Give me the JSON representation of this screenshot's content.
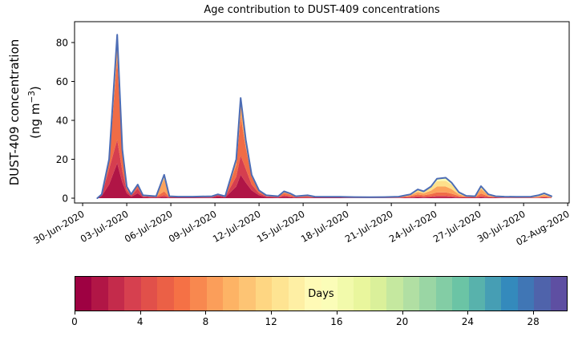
{
  "title": "Age contribution to DUST-409 concentrations",
  "ylabel": {
    "line1": "DUST-409 concentration",
    "line2_pre": "(ng m",
    "line2_sup": "−3",
    "line2_post": ")"
  },
  "colorbar": {
    "label": "Days",
    "min": 0,
    "max": 30,
    "n_segments": 30,
    "ticks": [
      0,
      4,
      8,
      12,
      16,
      20,
      24,
      28
    ],
    "colormap_name": "Spectral",
    "colormap_stops": [
      "#9e0142",
      "#d53e4f",
      "#f46d43",
      "#fdae61",
      "#fee08b",
      "#ffffbf",
      "#e6f598",
      "#abdda4",
      "#66c2a5",
      "#3288bd",
      "#5e4fa2"
    ]
  },
  "chart_data": {
    "type": "area",
    "stacked": true,
    "title": "Age contribution to DUST-409 concentrations",
    "ylabel": "DUST-409 concentration (ng m-3)",
    "x_unit": "days since 30-Jun-2020 00:00",
    "xlim": [
      -0.55,
      33.1
    ],
    "ylim": [
      -2.47,
      90.73
    ],
    "grid": false,
    "total_line_color": "#4d6db5",
    "y_ticks": [
      0,
      20,
      40,
      60,
      80
    ],
    "x_tick_days": [
      0,
      3,
      6,
      9,
      12,
      15,
      18,
      21,
      24,
      27,
      30,
      33
    ],
    "x_tick_labels": [
      "30-Jun-2020",
      "03-Jul-2020",
      "06-Jul-2020",
      "09-Jul-2020",
      "12-Jul-2020",
      "15-Jul-2020",
      "18-Jul-2020",
      "21-Jul-2020",
      "24-Jul-2020",
      "27-Jul-2020",
      "30-Jul-2020",
      "02-Aug-2020"
    ],
    "x": [
      1.0,
      1.3,
      1.8,
      2.35,
      2.7,
      3.0,
      3.3,
      3.75,
      4.1,
      5.0,
      5.55,
      5.9,
      6.5,
      7.5,
      8.8,
      9.2,
      9.7,
      10.45,
      10.75,
      11.1,
      11.5,
      12.0,
      12.5,
      13.3,
      13.7,
      14.1,
      14.5,
      15.3,
      15.8,
      16.5,
      17.5,
      18.5,
      19.5,
      20.5,
      21.5,
      22.3,
      22.8,
      23.2,
      23.7,
      24.1,
      24.7,
      25.1,
      25.6,
      26.1,
      26.7,
      27.1,
      27.6,
      28.1,
      28.7,
      29.5,
      30.5,
      31.0,
      31.4,
      31.9
    ],
    "series": [
      {
        "name": "0-2 days",
        "color": "#b01546",
        "values": [
          0,
          1.2,
          7,
          18,
          8,
          2.5,
          0.8,
          2.5,
          0.5,
          0.2,
          0.5,
          0.2,
          0.2,
          0.2,
          0.3,
          1.0,
          0.4,
          6,
          12,
          8,
          4,
          1.5,
          0.5,
          0.3,
          0.8,
          0.5,
          0.2,
          0.3,
          0.2,
          0.2,
          0.2,
          0.1,
          0.1,
          0.1,
          0.1,
          0.3,
          0.4,
          0.3,
          0.4,
          0.5,
          0.5,
          0.4,
          0.2,
          0.2,
          0.2,
          0.4,
          0.2,
          0.2,
          0.1,
          0.1,
          0.1,
          0.1,
          0.2,
          0.1
        ]
      },
      {
        "name": "2-4 days",
        "color": "#d53e4f",
        "values": [
          0,
          0.6,
          8,
          12,
          6,
          1.5,
          0.6,
          2.5,
          0.5,
          0.3,
          1.0,
          0.2,
          0.2,
          0.2,
          0.3,
          0.6,
          0.3,
          5,
          10,
          7,
          3,
          1.0,
          0.4,
          0.3,
          0.7,
          0.5,
          0.3,
          0.3,
          0.2,
          0.2,
          0.2,
          0.2,
          0.1,
          0.1,
          0.2,
          0.3,
          0.5,
          0.4,
          0.5,
          0.8,
          0.8,
          0.6,
          0.3,
          0.2,
          0.2,
          0.6,
          0.3,
          0.2,
          0.2,
          0.1,
          0.1,
          0.2,
          0.3,
          0.1
        ]
      },
      {
        "name": "4-7 days",
        "color": "#f06c46",
        "values": [
          0,
          0.2,
          4,
          42,
          9,
          1.5,
          0.4,
          1.5,
          0.3,
          0.3,
          2.0,
          0.3,
          0.2,
          0.2,
          0.2,
          0.2,
          0.2,
          6,
          20,
          11,
          4,
          1.0,
          0.4,
          0.2,
          1.2,
          0.9,
          0.3,
          0.5,
          0.2,
          0.2,
          0.2,
          0.2,
          0.2,
          0.2,
          0.2,
          0.5,
          1.0,
          0.8,
          1.2,
          1.7,
          1.7,
          1.3,
          0.6,
          0.3,
          0.2,
          1.4,
          0.5,
          0.2,
          0.2,
          0.2,
          0.2,
          0.3,
          0.5,
          0.2
        ]
      },
      {
        "name": "7-10 days",
        "color": "#fba35c",
        "values": [
          0,
          0,
          1,
          9,
          2,
          0.5,
          0.2,
          0.5,
          0.2,
          0.2,
          6.5,
          0.3,
          0.2,
          0.2,
          0.2,
          0.2,
          0.1,
          2.5,
          7,
          3,
          1,
          0.5,
          0.2,
          0.2,
          0.8,
          0.6,
          0.2,
          0.4,
          0.2,
          0.1,
          0.1,
          0.1,
          0.1,
          0.2,
          0.2,
          0.5,
          1.3,
          1.0,
          1.8,
          3.0,
          3.0,
          2.4,
          0.9,
          0.3,
          0.2,
          2.4,
          0.6,
          0.2,
          0.2,
          0.2,
          0.2,
          0.3,
          0.8,
          0.3
        ]
      },
      {
        "name": "10-14 days",
        "color": "#fee08b",
        "values": [
          0,
          0,
          0,
          3,
          0,
          0,
          0,
          0,
          0,
          0,
          2.0,
          0,
          0,
          0,
          0,
          0,
          0,
          0.5,
          2.5,
          1,
          0,
          0,
          0,
          0,
          0,
          0,
          0,
          0,
          0,
          0,
          0,
          0,
          0,
          0,
          0.1,
          0.4,
          1.0,
          0.7,
          1.5,
          2.8,
          3.0,
          2.3,
          0.7,
          0.2,
          0.2,
          1.1,
          0.4,
          0.2,
          0.1,
          0.1,
          0.2,
          0.3,
          0.5,
          0.2
        ]
      },
      {
        "name": "14-18 days",
        "color": "#fbfdb9",
        "values": [
          0,
          0,
          0,
          0,
          0,
          0,
          0,
          0,
          0,
          0,
          0,
          0,
          0,
          0,
          0,
          0,
          0,
          0,
          0,
          0,
          0,
          0,
          0,
          0,
          0,
          0,
          0,
          0,
          0,
          0,
          0,
          0,
          0,
          0,
          0,
          0,
          0.3,
          0.3,
          0.6,
          1.2,
          1.5,
          1.0,
          0.3,
          0,
          0,
          0.3,
          0,
          0,
          0,
          0,
          0,
          0.3,
          0.2,
          0.1
        ]
      }
    ]
  }
}
